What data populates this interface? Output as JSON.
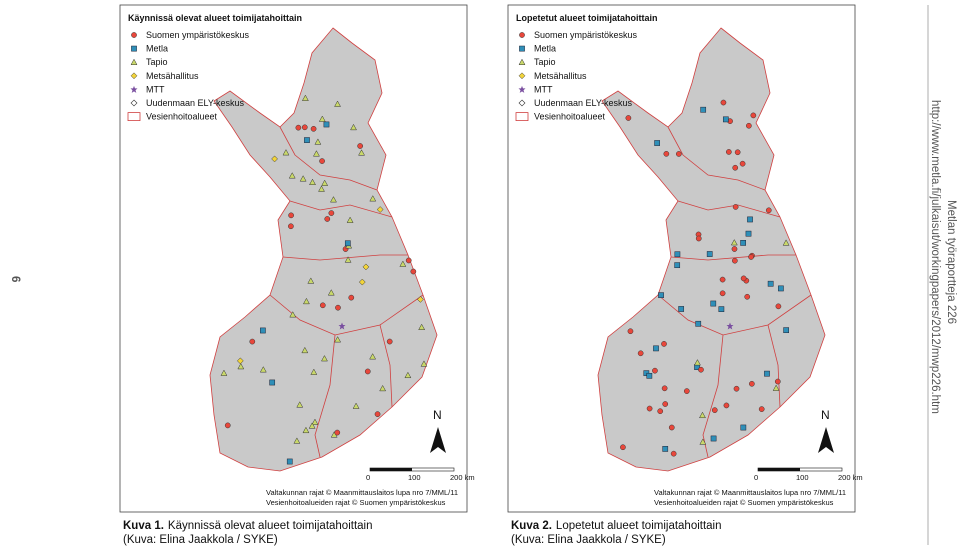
{
  "page_number": "6",
  "side_text": {
    "series": "Metlan työraportteja 226",
    "url": "http://www.metla.fi/julkaisut/workingpapers/2012/mwp226.htm"
  },
  "figures": [
    {
      "map_title": "Käynnissä olevat alueet toimijatahoittain",
      "legend": [
        "Suomen ympäristökeskus",
        "Metla",
        "Tapio",
        "Metsähallitus",
        "MTT",
        "Uudenmaan ELY-keskus",
        "Vesienhoitoalueet"
      ],
      "scale": [
        "0",
        "100",
        "200 km"
      ],
      "north": "N",
      "credits": [
        "Valtakunnan rajat © Maanmittauslaitos lupa nro 7/MML/11",
        "Vesienhoitoalueiden rajat © Suomen ympäristökeskus"
      ],
      "caption": {
        "label": "Kuva 1.",
        "text": "Käynnissä olevat alueet toimijatahoittain",
        "credit": "(Kuva: Elina Jaakkola / SYKE)"
      }
    },
    {
      "map_title": "Lopetetut alueet toimijatahoittain",
      "legend": [
        "Suomen ympäristökeskus",
        "Metla",
        "Tapio",
        "Metsähallitus",
        "MTT",
        "Uudenmaan ELY-keskus",
        "Vesienhoitoalueet"
      ],
      "scale": [
        "0",
        "100",
        "200 km"
      ],
      "north": "N",
      "credits": [
        "Valtakunnan rajat © Maanmittauslaitos lupa nro 7/MML/11",
        "Vesienhoitoalueiden rajat © Suomen ympäristökeskus"
      ],
      "caption": {
        "label": "Kuva 2.",
        "text": "Lopetetut alueet toimijatahoittain",
        "credit": "(Kuva: Elina Jaakkola / SYKE)"
      }
    }
  ]
}
